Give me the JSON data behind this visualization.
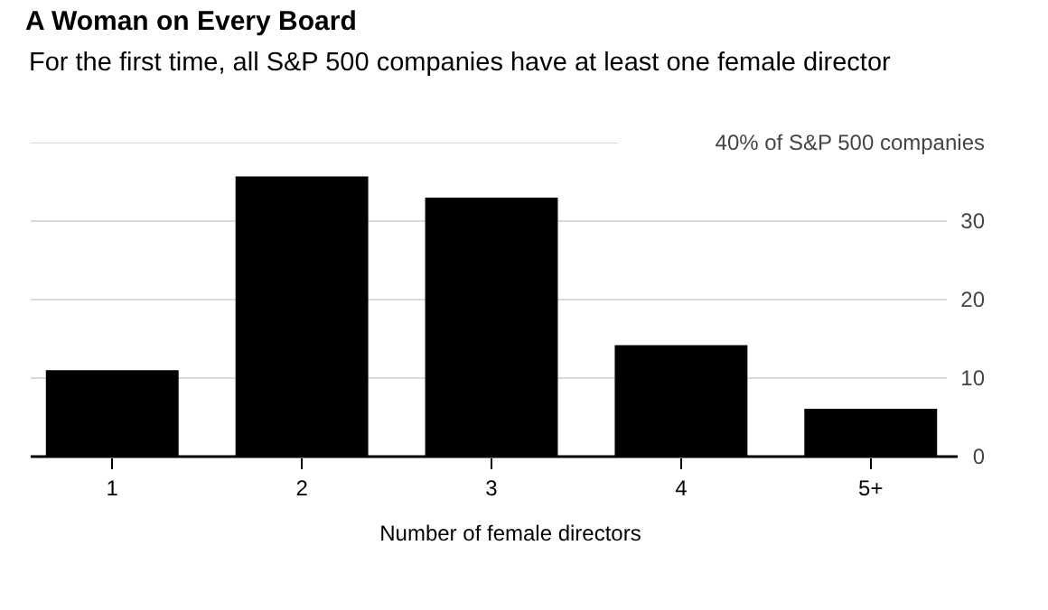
{
  "chart_data": {
    "type": "bar",
    "title": "A Woman on Every Board",
    "subtitle": "For the first time, all S&P 500 companies have at least one female director",
    "xlabel": "Number of female directors",
    "categories": [
      "1",
      "2",
      "3",
      "4",
      "5+"
    ],
    "values": [
      11,
      35.7,
      33,
      14.2,
      6.1
    ],
    "color": "#000000",
    "ylim": [
      0,
      40
    ],
    "yticks": [
      0,
      10,
      20,
      30,
      {
        "value": 40,
        "label": "40% of S&P 500 companies"
      }
    ],
    "grid": "y"
  }
}
